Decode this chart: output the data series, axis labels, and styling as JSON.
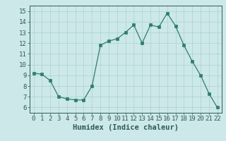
{
  "x": [
    0,
    1,
    2,
    3,
    4,
    5,
    6,
    7,
    8,
    9,
    10,
    11,
    12,
    13,
    14,
    15,
    16,
    17,
    18,
    19,
    20,
    21,
    22
  ],
  "y": [
    9.2,
    9.1,
    8.5,
    7.0,
    6.8,
    6.7,
    6.7,
    8.0,
    11.8,
    12.2,
    12.4,
    13.0,
    13.7,
    12.0,
    13.7,
    13.5,
    14.8,
    13.6,
    11.8,
    10.3,
    9.0,
    7.3,
    6.0
  ],
  "line_color": "#2e7d6e",
  "marker_color": "#2e7d6e",
  "bg_color": "#cce8e8",
  "grid_color": "#afd0d0",
  "xlabel": "Humidex (Indice chaleur)",
  "xlabel_fontsize": 7.5,
  "tick_fontsize": 6.5,
  "ylim": [
    5.5,
    15.5
  ],
  "xlim": [
    -0.5,
    22.5
  ],
  "yticks": [
    6,
    7,
    8,
    9,
    10,
    11,
    12,
    13,
    14,
    15
  ],
  "xticks": [
    0,
    1,
    2,
    3,
    4,
    5,
    6,
    7,
    8,
    9,
    10,
    11,
    12,
    13,
    14,
    15,
    16,
    17,
    18,
    19,
    20,
    21,
    22
  ],
  "tick_color": "#2e5a5a",
  "spine_color": "#2e5a5a"
}
